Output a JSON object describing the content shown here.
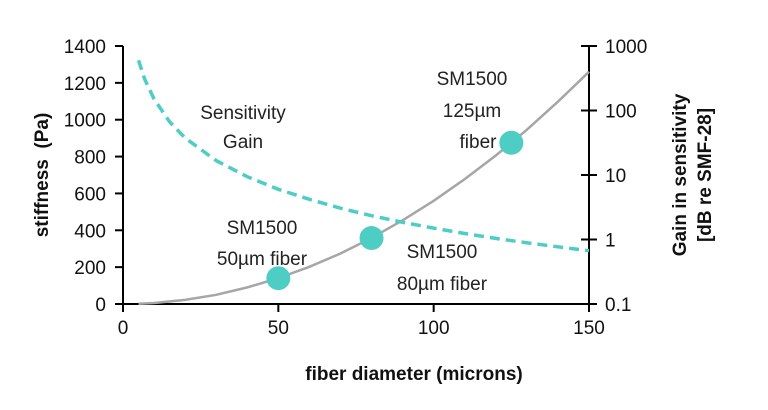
{
  "chart_data": {
    "type": "line",
    "xlabel": "fiber diameter (microns)",
    "ylabel": "stiffness  (Pa)",
    "y2label": [
      "Gain in sensitivity",
      "[dB re SMF-28]"
    ],
    "xlim": [
      0,
      150
    ],
    "ylim": [
      0,
      1400
    ],
    "y2lim": [
      0.1,
      1000
    ],
    "y2scale": "log",
    "xticks": [
      "0",
      "50",
      "100",
      "150"
    ],
    "yticks": [
      "0",
      "200",
      "400",
      "600",
      "800",
      "1000",
      "1200",
      "1400"
    ],
    "y2ticks": [
      "0.1",
      "1",
      "10",
      "100",
      "1000"
    ],
    "grid": false,
    "series": [
      {
        "axis": "left",
        "style": "solid",
        "color": "#a6a6a6",
        "x": [
          5,
          10,
          20,
          30,
          40,
          50,
          60,
          70,
          80,
          90,
          100,
          110,
          120,
          125,
          130,
          140,
          150
        ],
        "y": [
          1.4,
          5.6,
          22,
          50,
          90,
          140,
          202,
          274,
          358,
          454,
          560,
          678,
          806,
          875,
          946,
          1098,
          1260
        ]
      },
      {
        "axis": "right",
        "style": "dashed",
        "color": "#4ecdc4",
        "x": [
          5,
          7,
          10,
          15,
          20,
          30,
          40,
          50,
          60,
          70,
          80,
          90,
          100,
          110,
          120,
          130,
          140,
          150
        ],
        "y": [
          600,
          306,
          150,
          66.7,
          37.5,
          16.7,
          9.4,
          6.0,
          4.2,
          3.06,
          2.34,
          1.85,
          1.5,
          1.24,
          1.04,
          0.89,
          0.77,
          0.67
        ]
      }
    ],
    "markers": [
      {
        "x": 50,
        "y": 140,
        "color": "#4ecdc4"
      },
      {
        "x": 80,
        "y": 358,
        "color": "#4ecdc4"
      },
      {
        "x": 125,
        "y": 875,
        "color": "#4ecdc4"
      }
    ],
    "annotations": {
      "gain": [
        "Sensitivity",
        "Gain"
      ],
      "fiber50": [
        "SM1500",
        "50µm fiber"
      ],
      "fiber80": [
        "SM1500",
        "80µm fiber"
      ],
      "fiber125": [
        "SM1500",
        "125µm",
        "fiber"
      ]
    }
  }
}
